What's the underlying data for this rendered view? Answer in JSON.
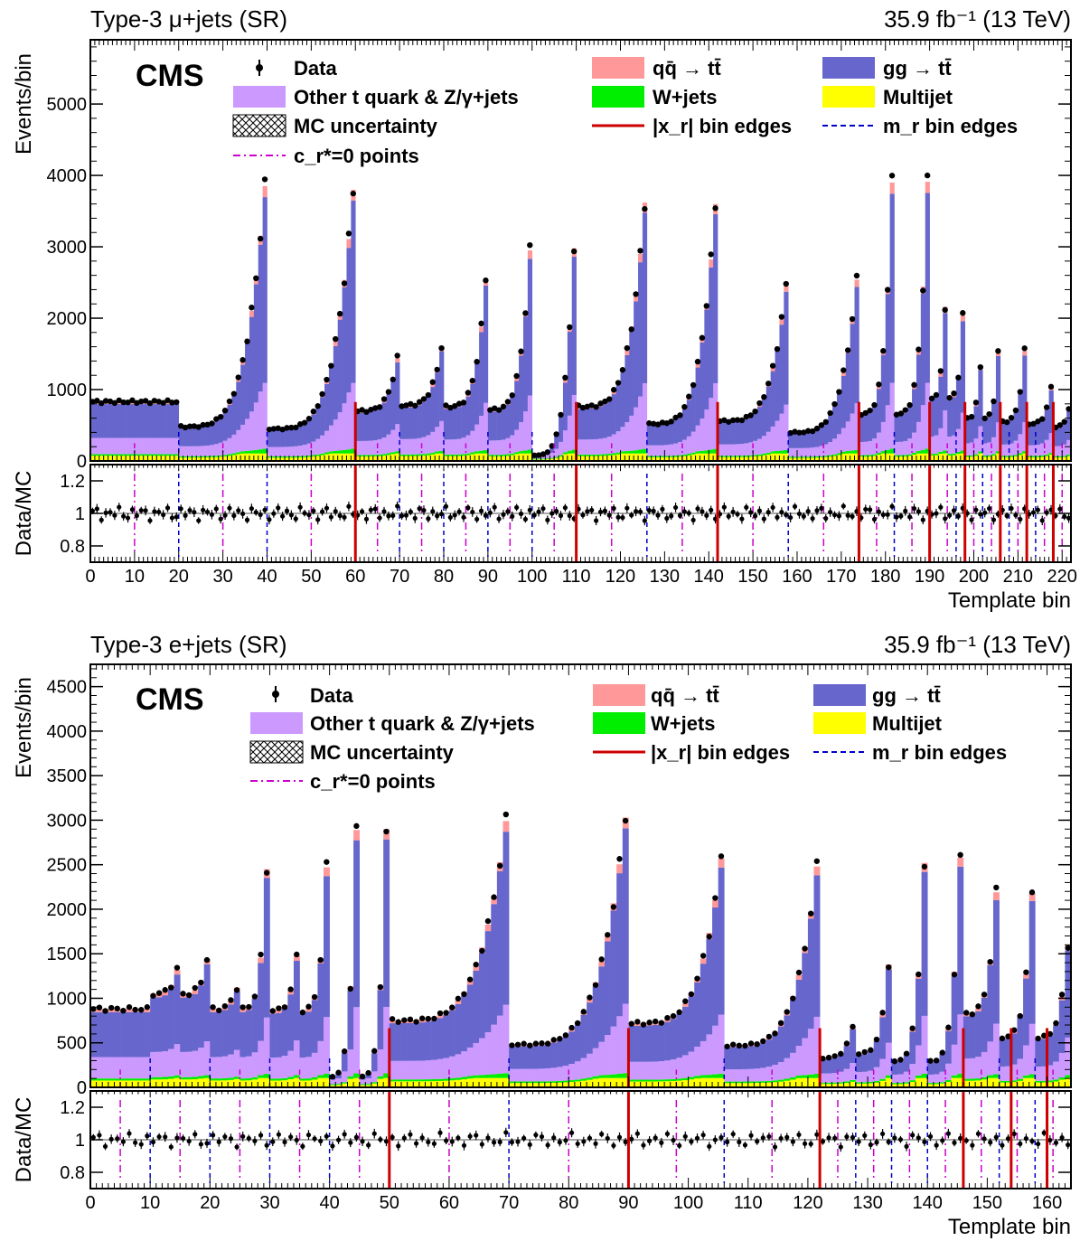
{
  "chart_data": [
    {
      "type": "bar",
      "stacked": true,
      "title_left": "Type-3 μ+jets (SR)",
      "title_right": "35.9 fb⁻¹ (13 TeV)",
      "experiment_label": "CMS",
      "xlabel": "Template bin",
      "ylabel": "Events/bin",
      "ratio_ylabel": "Data/MC",
      "xlim": [
        0,
        222
      ],
      "ylim": [
        0,
        5900
      ],
      "ratio_ylim": [
        0.7,
        1.3
      ],
      "x_tick_labels": [
        "0",
        "10",
        "20",
        "30",
        "40",
        "50",
        "60",
        "70",
        "80",
        "90",
        "100",
        "110",
        "120",
        "130",
        "140",
        "150",
        "160",
        "170",
        "180",
        "190",
        "200",
        "210",
        "220"
      ],
      "y_tick_labels": [
        "0",
        "1000",
        "2000",
        "3000",
        "4000",
        "5000"
      ],
      "ratio_tick_labels": [
        "0.8",
        "1",
        "1.2"
      ],
      "legend_position": "top",
      "legend": [
        "Data",
        "Other t quark & Z/γ+jets",
        "MC uncertainty",
        "c_r*=0 points",
        "qq̄ → tt̄",
        "W+jets",
        "|x_r| bin edges",
        "gg → tt̄",
        "Multijet",
        "m_r bin edges"
      ],
      "series_colors": {
        "gg": "#6666cc",
        "qq": "#ff9999",
        "other": "#cc99ff",
        "wjets": "#00ee00",
        "multijet": "#ffff00",
        "xr_edges": "#cc0000",
        "mr_edges": "#0000cc",
        "cr_points": "#cc00cc"
      },
      "xr_bin_edges": [
        60,
        110,
        142,
        174,
        190,
        198,
        206,
        212,
        218
      ],
      "mr_bin_edges": [
        20,
        40,
        70,
        80,
        90,
        100,
        110,
        126,
        142,
        158,
        182,
        190,
        196,
        202,
        208,
        214
      ],
      "cr_zero_points": [
        10,
        30,
        50,
        65,
        75,
        85,
        95,
        105,
        118,
        134,
        150,
        166,
        178,
        186,
        194,
        200,
        204,
        210,
        216,
        220
      ],
      "segments": [
        {
          "start": 0,
          "end": 20,
          "base": 830,
          "peak": 0
        },
        {
          "start": 20,
          "end": 40,
          "base": 480,
          "peak": 3850
        },
        {
          "start": 40,
          "end": 60,
          "base": 450,
          "peak": 3800
        },
        {
          "start": 60,
          "end": 70,
          "base": 700,
          "peak": 1440
        },
        {
          "start": 70,
          "end": 80,
          "base": 780,
          "peak": 1600
        },
        {
          "start": 80,
          "end": 90,
          "base": 760,
          "peak": 2560
        },
        {
          "start": 90,
          "end": 100,
          "base": 720,
          "peak": 2950
        },
        {
          "start": 100,
          "end": 110,
          "base": 80,
          "peak": 2980
        },
        {
          "start": 110,
          "end": 126,
          "base": 760,
          "peak": 3620
        },
        {
          "start": 126,
          "end": 142,
          "base": 520,
          "peak": 3600
        },
        {
          "start": 142,
          "end": 158,
          "base": 560,
          "peak": 2470
        },
        {
          "start": 158,
          "end": 174,
          "base": 400,
          "peak": 2540
        },
        {
          "start": 174,
          "end": 182,
          "base": 660,
          "peak": 3900
        },
        {
          "start": 182,
          "end": 190,
          "base": 660,
          "peak": 3910
        },
        {
          "start": 190,
          "end": 194,
          "base": 880,
          "peak": 2160
        },
        {
          "start": 194,
          "end": 198,
          "base": 880,
          "peak": 2040
        },
        {
          "start": 198,
          "end": 202,
          "base": 600,
          "peak": 1330
        },
        {
          "start": 202,
          "end": 206,
          "base": 600,
          "peak": 1530
        },
        {
          "start": 206,
          "end": 212,
          "base": 550,
          "peak": 1540
        },
        {
          "start": 212,
          "end": 218,
          "base": 520,
          "peak": 1030
        },
        {
          "start": 218,
          "end": 222,
          "base": 480,
          "peak": 740
        }
      ]
    },
    {
      "type": "bar",
      "stacked": true,
      "title_left": "Type-3 e+jets (SR)",
      "title_right": "35.9 fb⁻¹ (13 TeV)",
      "experiment_label": "CMS",
      "xlabel": "Template bin",
      "ylabel": "Events/bin",
      "ratio_ylabel": "Data/MC",
      "xlim": [
        0,
        164
      ],
      "ylim": [
        0,
        4750
      ],
      "ratio_ylim": [
        0.7,
        1.3
      ],
      "x_tick_labels": [
        "0",
        "10",
        "20",
        "30",
        "40",
        "50",
        "60",
        "70",
        "80",
        "90",
        "100",
        "110",
        "120",
        "130",
        "140",
        "150",
        "160"
      ],
      "y_tick_labels": [
        "0",
        "500",
        "1000",
        "1500",
        "2000",
        "2500",
        "3000",
        "3500",
        "4000",
        "4500"
      ],
      "ratio_tick_labels": [
        "0.8",
        "1",
        "1.2"
      ],
      "legend_position": "top",
      "legend": [
        "Data",
        "Other t quark & Z/γ+jets",
        "MC uncertainty",
        "c_r*=0 points",
        "qq̄ → tt̄",
        "W+jets",
        "|x_r| bin edges",
        "gg → tt̄",
        "Multijet",
        "m_r bin edges"
      ],
      "series_colors": {
        "gg": "#6666cc",
        "qq": "#ff9999",
        "other": "#cc99ff",
        "wjets": "#00ee00",
        "multijet": "#ffff00",
        "xr_edges": "#cc0000",
        "mr_edges": "#0000cc",
        "cr_points": "#cc00cc"
      },
      "xr_bin_edges": [
        50,
        90,
        122,
        146,
        154,
        160
      ],
      "mr_bin_edges": [
        10,
        20,
        30,
        40,
        70,
        106,
        128,
        134,
        140,
        146,
        152,
        158
      ],
      "cr_zero_points": [
        5,
        15,
        25,
        35,
        45,
        60,
        80,
        98,
        114,
        125,
        131,
        137,
        143,
        149,
        155,
        161
      ],
      "segments": [
        {
          "start": 0,
          "end": 5,
          "base": 880,
          "peak": 0
        },
        {
          "start": 5,
          "end": 10,
          "base": 880,
          "peak": 0
        },
        {
          "start": 10,
          "end": 15,
          "base": 1050,
          "peak": 1320
        },
        {
          "start": 15,
          "end": 20,
          "base": 1050,
          "peak": 1440
        },
        {
          "start": 20,
          "end": 25,
          "base": 880,
          "peak": 1120
        },
        {
          "start": 25,
          "end": 30,
          "base": 880,
          "peak": 2450
        },
        {
          "start": 30,
          "end": 35,
          "base": 860,
          "peak": 1480
        },
        {
          "start": 35,
          "end": 40,
          "base": 860,
          "peak": 2470
        },
        {
          "start": 40,
          "end": 45,
          "base": 120,
          "peak": 2890
        },
        {
          "start": 45,
          "end": 50,
          "base": 120,
          "peak": 2900
        },
        {
          "start": 50,
          "end": 70,
          "base": 750,
          "peak": 2990
        },
        {
          "start": 70,
          "end": 90,
          "base": 480,
          "peak": 3030
        },
        {
          "start": 90,
          "end": 106,
          "base": 720,
          "peak": 2570
        },
        {
          "start": 106,
          "end": 122,
          "base": 470,
          "peak": 2480
        },
        {
          "start": 122,
          "end": 128,
          "base": 330,
          "peak": 680
        },
        {
          "start": 128,
          "end": 134,
          "base": 380,
          "peak": 1380
        },
        {
          "start": 134,
          "end": 140,
          "base": 290,
          "peak": 2520
        },
        {
          "start": 140,
          "end": 146,
          "base": 290,
          "peak": 2580
        },
        {
          "start": 146,
          "end": 152,
          "base": 830,
          "peak": 2190
        },
        {
          "start": 152,
          "end": 158,
          "base": 560,
          "peak": 2180
        },
        {
          "start": 158,
          "end": 164,
          "base": 560,
          "peak": 1600
        }
      ]
    }
  ]
}
